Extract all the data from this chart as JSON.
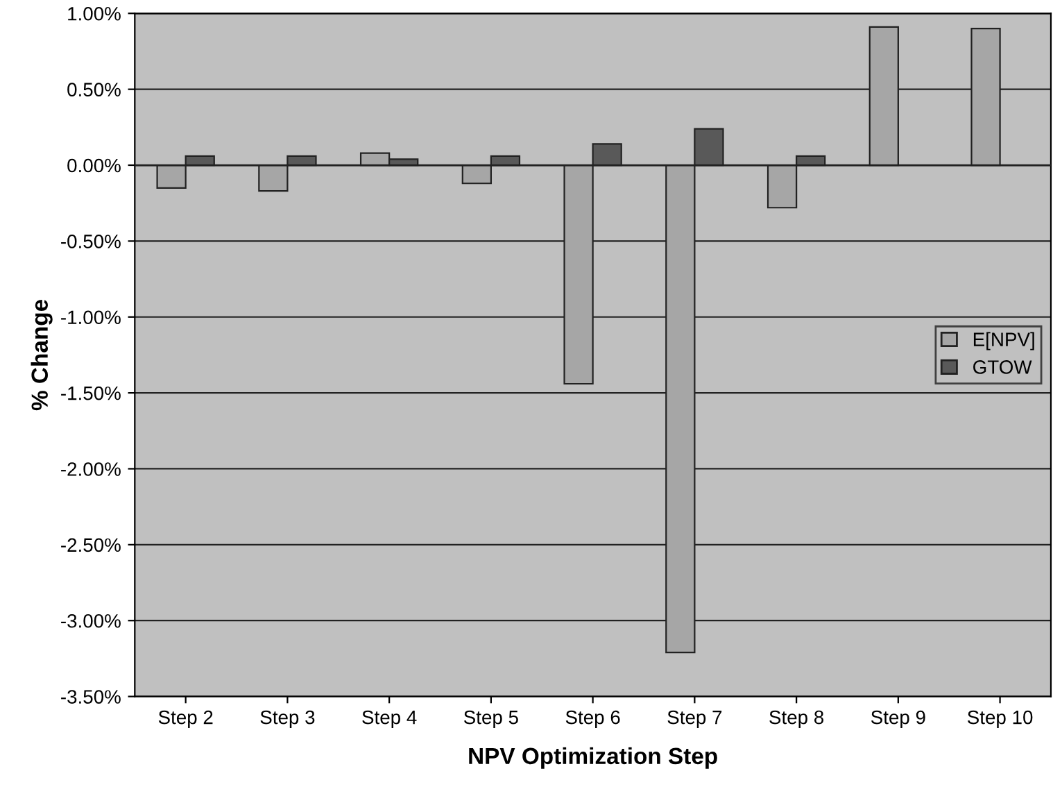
{
  "chart_data": {
    "type": "bar",
    "xlabel": "NPV Optimization Step",
    "ylabel": "% Change",
    "categories": [
      "Step 2",
      "Step 3",
      "Step 4",
      "Step 5",
      "Step 6",
      "Step 7",
      "Step 8",
      "Step 9",
      "Step 10"
    ],
    "series": [
      {
        "name": "E[NPV]",
        "color": "#a6a6a6",
        "values": [
          -0.15,
          -0.17,
          0.08,
          -0.12,
          -1.44,
          -3.21,
          -0.28,
          0.91,
          0.9
        ]
      },
      {
        "name": "GTOW",
        "color": "#595959",
        "values": [
          0.06,
          0.06,
          0.04,
          0.06,
          0.14,
          0.24,
          0.06,
          null,
          null
        ]
      }
    ],
    "ylim": [
      -3.5,
      1.0
    ],
    "yticks": [
      {
        "value": -3.5,
        "label": "-3.50%"
      },
      {
        "value": -3.0,
        "label": "-3.00%"
      },
      {
        "value": -2.5,
        "label": "-2.50%"
      },
      {
        "value": -2.0,
        "label": "-2.00%"
      },
      {
        "value": -1.5,
        "label": "-1.50%"
      },
      {
        "value": -1.0,
        "label": "-1.00%"
      },
      {
        "value": -0.5,
        "label": "-0.50%"
      },
      {
        "value": 0.0,
        "label": "0.00%"
      },
      {
        "value": 0.5,
        "label": "0.50%"
      },
      {
        "value": 1.0,
        "label": "1.00%"
      }
    ],
    "grid": "y",
    "legend": "right"
  }
}
